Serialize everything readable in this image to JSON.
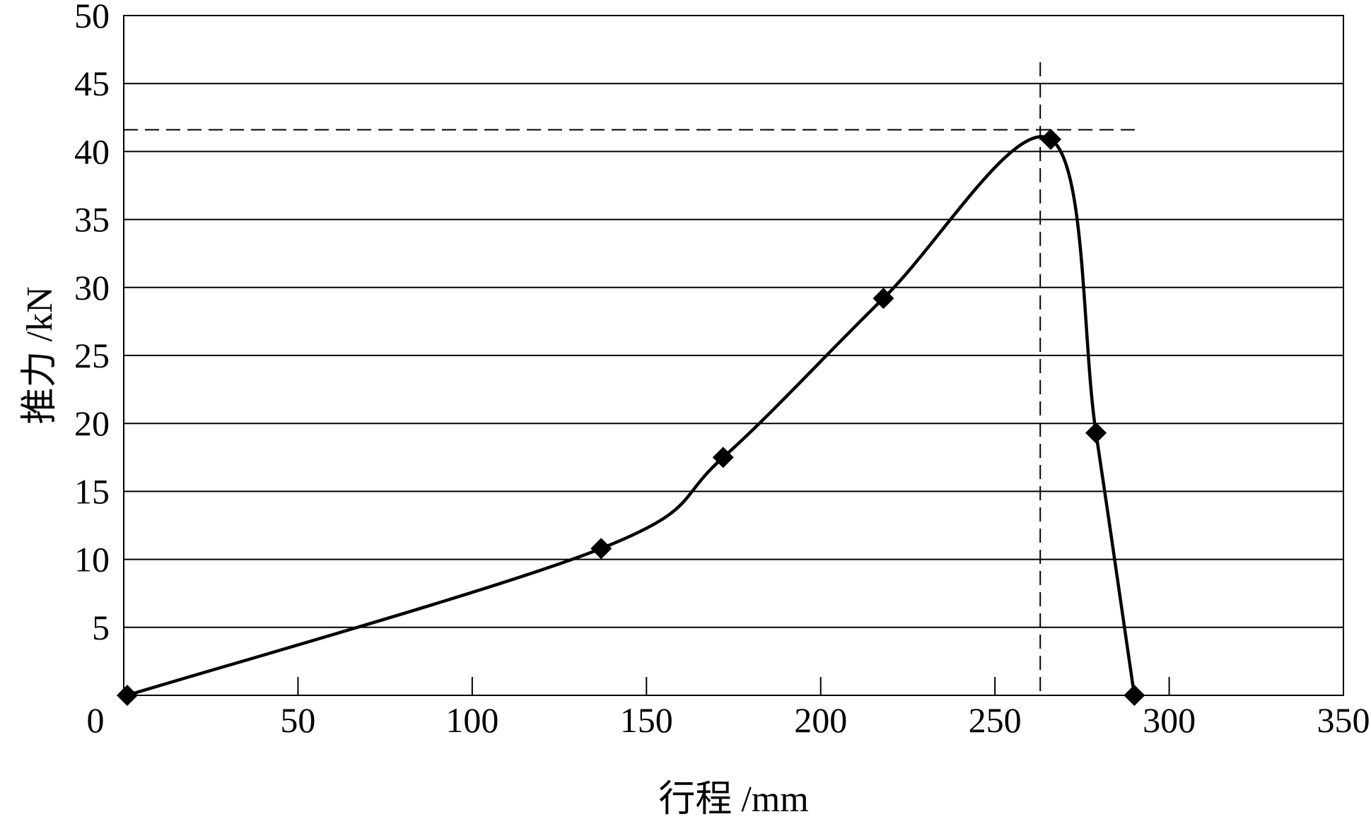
{
  "chart_data": {
    "type": "line",
    "title": "",
    "xlabel": "行程 /mm",
    "ylabel": "推力 /kN",
    "xlim": [
      0,
      350
    ],
    "ylim": [
      0,
      50
    ],
    "x_ticks": [
      50,
      100,
      150,
      200,
      250,
      300,
      350
    ],
    "x_tick_labels": [
      "50",
      "100",
      "150",
      "200",
      "250",
      "300",
      "350"
    ],
    "y_ticks": [
      5,
      10,
      15,
      20,
      25,
      30,
      35,
      40,
      45,
      50
    ],
    "y_tick_labels": [
      "5",
      "10",
      "15",
      "20",
      "25",
      "30",
      "35",
      "40",
      "45",
      "50"
    ],
    "origin_label": "0",
    "grid": "horizontal",
    "legend": "none",
    "series": [
      {
        "marker": "diamond",
        "x": [
          1,
          137,
          172,
          218,
          266,
          279,
          290
        ],
        "y": [
          0,
          10.8,
          17.5,
          29.2,
          40.9,
          19.3,
          0
        ]
      }
    ],
    "reference_lines": {
      "peak_x": 263,
      "peak_y": 41.6,
      "style": "dashed"
    },
    "colors": {
      "line": "#000000",
      "grid": "#000000",
      "background": "#ffffff"
    }
  }
}
